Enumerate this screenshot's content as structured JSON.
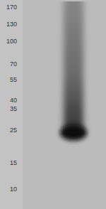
{
  "chart_data": {
    "type": "blot",
    "log": "y",
    "ylim": [
      7.5,
      185
    ],
    "yticks": [
      170,
      130,
      100,
      70,
      55,
      40,
      35,
      25,
      15,
      10
    ],
    "bands": [
      24
    ],
    "grid": false
  }
}
